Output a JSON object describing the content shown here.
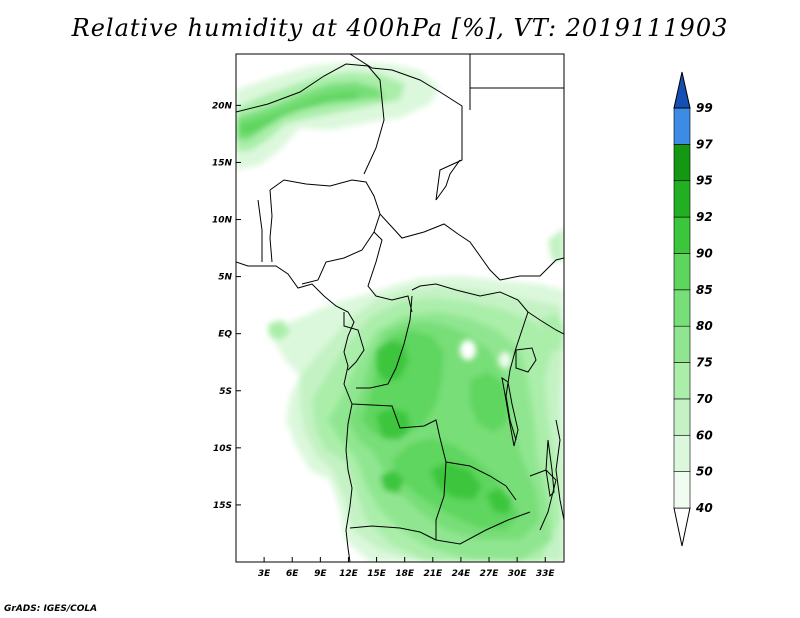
{
  "title": "Relative humidity at 400hPa [%], VT: 2019111903",
  "credit": "GrADS: IGES/COLA",
  "map": {
    "lon_range": [
      0,
      35
    ],
    "lat_range": [
      -20,
      24.5
    ],
    "lat_labels": [
      "20N",
      "15N",
      "10N",
      "5N",
      "EQ",
      "5S",
      "10S",
      "15S"
    ],
    "lat_values": [
      20,
      15,
      10,
      5,
      0,
      -5,
      -10,
      -15
    ],
    "lon_labels": [
      "3E",
      "6E",
      "9E",
      "12E",
      "15E",
      "18E",
      "21E",
      "24E",
      "27E",
      "30E",
      "33E"
    ],
    "lon_values": [
      3,
      6,
      9,
      12,
      15,
      18,
      21,
      24,
      27,
      30,
      33
    ]
  },
  "colorbar": {
    "levels": [
      "40",
      "50",
      "60",
      "70",
      "75",
      "80",
      "85",
      "90",
      "92",
      "95",
      "97",
      "99"
    ],
    "colors": [
      "#f0fcf0",
      "#dcf8dc",
      "#c4f2c4",
      "#aaeeaa",
      "#90e690",
      "#78de78",
      "#5ed65e",
      "#3cc63c",
      "#22b022",
      "#149814",
      "#3c8ce6",
      "#1e6ed2",
      "#1450b4"
    ]
  }
}
